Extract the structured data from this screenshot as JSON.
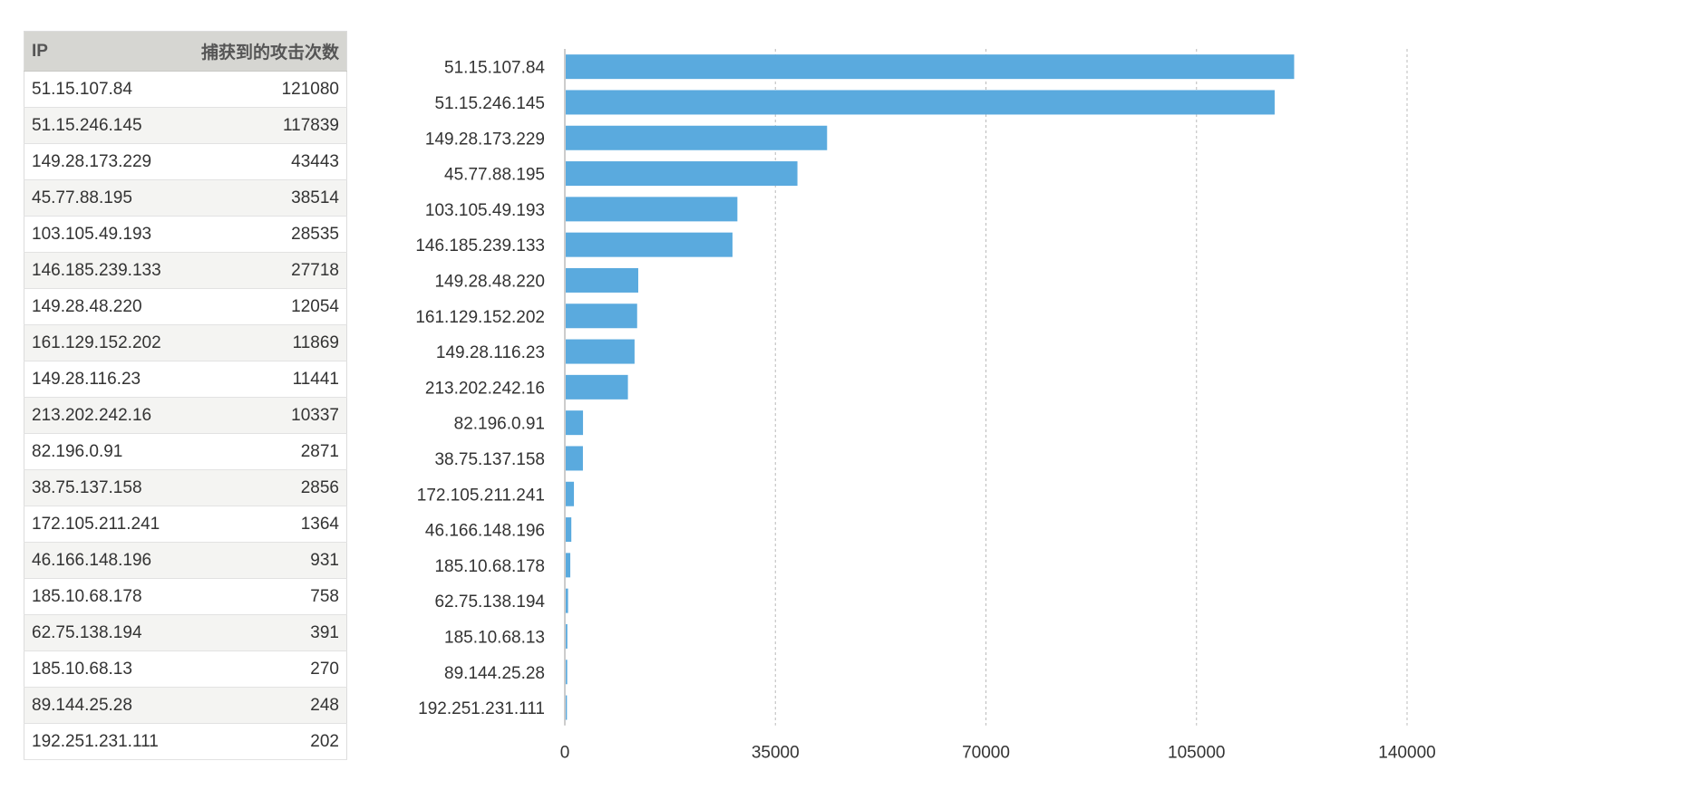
{
  "table": {
    "headers": [
      "IP",
      "捕获到的攻击次数"
    ],
    "rows": [
      [
        "51.15.107.84",
        "121080"
      ],
      [
        "51.15.246.145",
        "117839"
      ],
      [
        "149.28.173.229",
        "43443"
      ],
      [
        "45.77.88.195",
        "38514"
      ],
      [
        "103.105.49.193",
        "28535"
      ],
      [
        "146.185.239.133",
        "27718"
      ],
      [
        "149.28.48.220",
        "12054"
      ],
      [
        "161.129.152.202",
        "11869"
      ],
      [
        "149.28.116.23",
        "11441"
      ],
      [
        "213.202.242.16",
        "10337"
      ],
      [
        "82.196.0.91",
        "2871"
      ],
      [
        "38.75.137.158",
        "2856"
      ],
      [
        "172.105.211.241",
        "1364"
      ],
      [
        "46.166.148.196",
        "931"
      ],
      [
        "185.10.68.178",
        "758"
      ],
      [
        "62.75.138.194",
        "391"
      ],
      [
        "185.10.68.13",
        "270"
      ],
      [
        "89.144.25.28",
        "248"
      ],
      [
        "192.251.231.111",
        "202"
      ]
    ]
  },
  "chart_data": {
    "type": "bar",
    "orientation": "horizontal",
    "categories": [
      "51.15.107.84",
      "51.15.246.145",
      "149.28.173.229",
      "45.77.88.195",
      "103.105.49.193",
      "146.185.239.133",
      "149.28.48.220",
      "161.129.152.202",
      "149.28.116.23",
      "213.202.242.16",
      "82.196.0.91",
      "38.75.137.158",
      "172.105.211.241",
      "46.166.148.196",
      "185.10.68.178",
      "62.75.138.194",
      "185.10.68.13",
      "89.144.25.28",
      "192.251.231.111"
    ],
    "values": [
      121080,
      117839,
      43443,
      38514,
      28535,
      27718,
      12054,
      11869,
      11441,
      10337,
      2871,
      2856,
      1364,
      931,
      758,
      391,
      270,
      248,
      202
    ],
    "xlim": [
      0,
      140000
    ],
    "xticks": [
      0,
      35000,
      70000,
      105000,
      140000
    ],
    "xtick_labels": [
      "0",
      "35000",
      "70000",
      "105000",
      "140000"
    ],
    "grid": "vertical-dashed",
    "bar_color": "#5aaade",
    "grid_color": "#bbbbbb",
    "axis_color": "#999999",
    "title": "",
    "xlabel": "",
    "ylabel": ""
  }
}
